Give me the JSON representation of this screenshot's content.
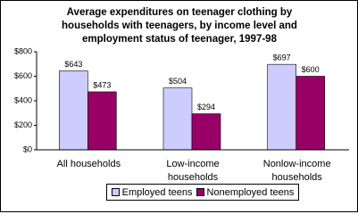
{
  "chart_data": {
    "type": "bar",
    "title": "Average expenditures on teenager clothing by households with teenagers, by income level and employment status of teenager, 1997-98",
    "categories": [
      "All households",
      "Low-income households",
      "Nonlow-income households"
    ],
    "series": [
      {
        "name": "Employed teens",
        "color": "#ccccff",
        "values": [
          643,
          504,
          697
        ],
        "value_labels": [
          "$643",
          "$504",
          "$697"
        ]
      },
      {
        "name": "Nonemployed teens",
        "color": "#990066",
        "values": [
          473,
          294,
          600
        ],
        "value_labels": [
          "$473",
          "$294",
          "$600"
        ]
      }
    ],
    "ylim": [
      0,
      800
    ],
    "yticks": [
      {
        "value": 0,
        "label": "$0"
      },
      {
        "value": 200,
        "label": "$200"
      },
      {
        "value": 400,
        "label": "$400"
      },
      {
        "value": 600,
        "label": "$600"
      },
      {
        "value": 800,
        "label": "$800"
      }
    ],
    "legend": "bottom"
  }
}
